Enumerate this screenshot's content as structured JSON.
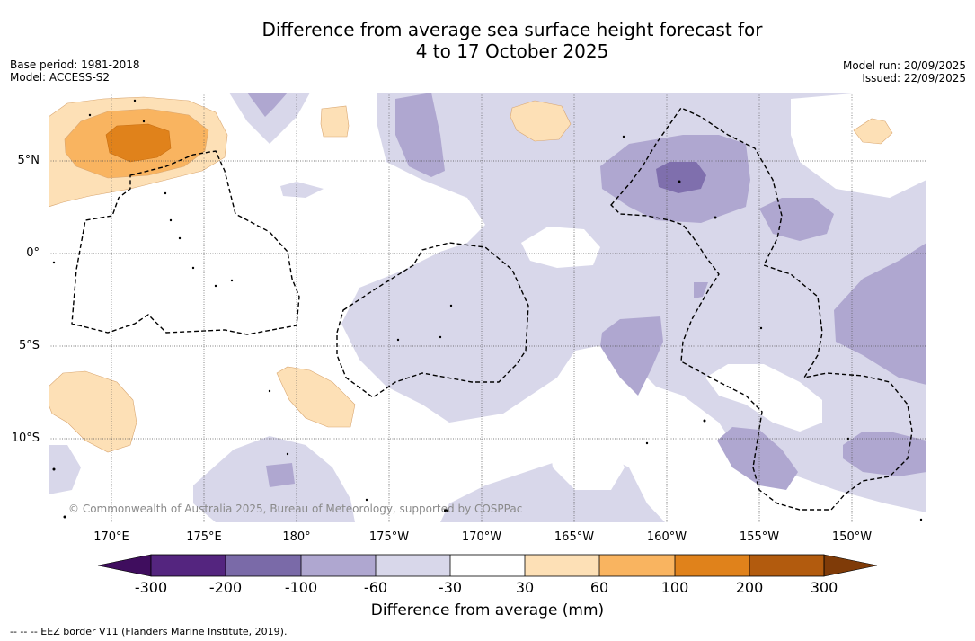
{
  "title": {
    "line1": "Difference from average sea surface height forecast for",
    "line2": "4 to 17 October 2025"
  },
  "meta_left": {
    "base_period": "Base period: 1981-2018",
    "model": "Model: ACCESS-S2"
  },
  "meta_right": {
    "model_run": "Model run: 20/09/2025",
    "issued": "Issued: 22/09/2025"
  },
  "longitude_labels": [
    "170°E",
    "175°E",
    "180°",
    "175°W",
    "170°W",
    "165°W",
    "160°W",
    "155°W",
    "150°W"
  ],
  "latitude_labels": [
    "5°N",
    "0°",
    "5°S",
    "10°S"
  ],
  "copyright": "© Commonwealth of Australia 2025, Bureau of Meteorology, supported by COSPPac",
  "colorbar": {
    "title": "Difference from average (mm)",
    "ticks": [
      "-300",
      "-200",
      "-100",
      "-60",
      "-30",
      "30",
      "60",
      "100",
      "200",
      "300"
    ],
    "colors": [
      "#3f0d5e",
      "#54257f",
      "#7a6aa8",
      "#afa7d0",
      "#d8d7ea",
      "#ffffff",
      "#fde0b6",
      "#f9b460",
      "#e0821b",
      "#b25b0e",
      "#7f3b08"
    ]
  },
  "footnote": "-- -- -- EEZ border V11 (Flanders Marine Institute, 2019).",
  "colors": {
    "purple_light": "#d8d7ea",
    "purple_mid": "#afa7d0",
    "purple_dark": "#7f6fad",
    "orange_light": "#fde0b6",
    "orange_mid": "#f9b460",
    "orange_dark": "#e0821b"
  }
}
